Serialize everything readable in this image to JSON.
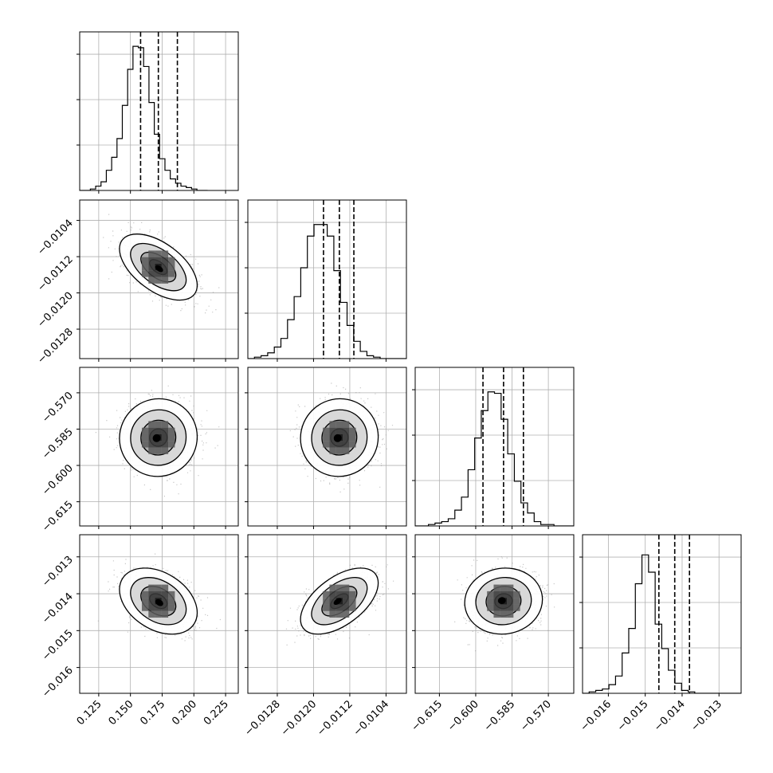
{
  "chart_data": {
    "type": "corner",
    "title": "",
    "grid": true,
    "colors": {
      "line": "#000000",
      "grid": "#b0b0b0",
      "points": "#9a9a9a",
      "fill_dark": "#000000",
      "fill_light": "#ffffff"
    },
    "params": [
      {
        "range": [
          0.11,
          0.235
        ],
        "ticks": [
          0.125,
          0.15,
          0.175,
          0.2,
          0.225
        ],
        "tick_labels": [
          "0.125",
          "0.150",
          "0.175",
          "0.200",
          "0.225"
        ],
        "quantiles": [
          0.158,
          0.172,
          0.187
        ],
        "hist": {
          "edges_start": 0.11,
          "bin_width": 0.0042,
          "counts": [
            0,
            0,
            1,
            3,
            6,
            14,
            23,
            36,
            59,
            84,
            100,
            99,
            86,
            61,
            39,
            22,
            14,
            8,
            5,
            3,
            2,
            1,
            0,
            0
          ],
          "ylim": [
            0,
            100
          ]
        }
      },
      {
        "range": [
          -0.01345,
          -0.00995
        ],
        "ticks": [
          -0.0128,
          -0.012,
          -0.0112,
          -0.0104
        ],
        "tick_labels": [
          "−0.0128",
          "−0.0120",
          "−0.0112",
          "−0.0104"
        ],
        "quantiles": [
          -0.01178,
          -0.01143,
          -0.01111
        ],
        "hist": {
          "edges_start": -0.01345,
          "bin_width": 0.000146,
          "counts": [
            0,
            1,
            2,
            4,
            8,
            14,
            27,
            43,
            63,
            85,
            93,
            93,
            85,
            61,
            39,
            23,
            12,
            5,
            2,
            1,
            0,
            0,
            0,
            0
          ],
          "ylim": [
            0,
            100
          ]
        }
      },
      {
        "range": [
          -0.625,
          -0.5595
        ],
        "ticks": [
          -0.615,
          -0.6,
          -0.585,
          -0.57
        ],
        "tick_labels": [
          "−0.615",
          "−0.600",
          "−0.585",
          "−0.570"
        ],
        "quantiles": [
          -0.597,
          -0.5885,
          -0.5803
        ],
        "hist": {
          "edges_start": -0.625,
          "bin_width": 0.00273,
          "counts": [
            0,
            0,
            1,
            2,
            3,
            5,
            11,
            20,
            39,
            61,
            80,
            93,
            92,
            74,
            50,
            31,
            16,
            9,
            3,
            1,
            1,
            0,
            0,
            0
          ],
          "ylim": [
            0,
            100
          ]
        }
      },
      {
        "range": [
          -0.0167,
          -0.0124
        ],
        "ticks": [
          -0.016,
          -0.015,
          -0.014,
          -0.013
        ],
        "tick_labels": [
          "−0.016",
          "−0.015",
          "−0.014",
          "−0.013"
        ],
        "quantiles": [
          -0.01463,
          -0.0142,
          -0.0138
        ],
        "hist": {
          "edges_start": -0.0167,
          "bin_width": 0.000179,
          "counts": [
            0,
            1,
            2,
            3,
            6,
            12,
            28,
            45,
            76,
            96,
            84,
            48,
            31,
            16,
            7,
            2,
            1,
            0,
            0,
            0,
            0,
            0,
            0,
            0
          ],
          "ylim": [
            0,
            100
          ]
        }
      }
    ],
    "pairs": [
      {
        "x": 0,
        "y": 1,
        "center": [
          0.172,
          -0.01143
        ],
        "sigma_frac": [
          0.1,
          0.085
        ],
        "rho": -0.55
      },
      {
        "x": 0,
        "y": 2,
        "center": [
          0.172,
          -0.5885
        ],
        "sigma_frac": [
          0.1,
          0.1
        ],
        "rho": 0.02
      },
      {
        "x": 1,
        "y": 2,
        "center": [
          -0.01143,
          -0.5885
        ],
        "sigma_frac": [
          0.1,
          0.1
        ],
        "rho": 0.02
      },
      {
        "x": 0,
        "y": 3,
        "center": [
          0.172,
          -0.0142
        ],
        "sigma_frac": [
          0.1,
          0.085
        ],
        "rho": -0.35
      },
      {
        "x": 1,
        "y": 3,
        "center": [
          -0.01143,
          -0.0142
        ],
        "sigma_frac": [
          0.1,
          0.085
        ],
        "rho": 0.55
      },
      {
        "x": 2,
        "y": 3,
        "center": [
          -0.5885,
          -0.0142
        ],
        "sigma_frac": [
          0.1,
          0.085
        ],
        "rho": 0.05
      }
    ]
  }
}
